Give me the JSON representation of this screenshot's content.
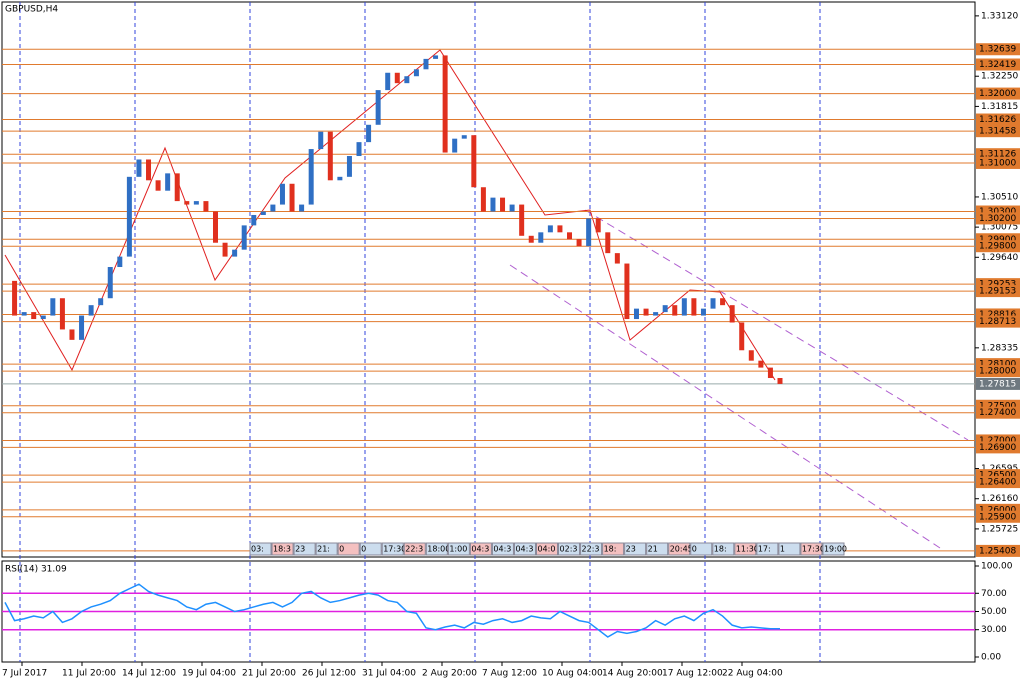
{
  "chart_data": [
    {
      "type": "candlestick",
      "title": "GBPUSD,H4",
      "up_color": "#2f6fc4",
      "down_color": "#e0301e",
      "values": [
        1.293,
        1.288,
        1.2885,
        1.2875,
        1.288,
        1.2905,
        1.286,
        1.2845,
        1.288,
        1.2895,
        1.2905,
        1.295,
        1.2965,
        1.308,
        1.3105,
        1.3075,
        1.306,
        1.3085,
        1.3045,
        1.304,
        1.3045,
        1.303,
        1.2985,
        1.2965,
        1.2975,
        1.301,
        1.3025,
        1.303,
        1.304,
        1.307,
        1.303,
        1.304,
        1.312,
        1.3145,
        1.3075,
        1.308,
        1.311,
        1.313,
        1.3155,
        1.3205,
        1.323,
        1.3215,
        1.3225,
        1.3235,
        1.325,
        1.3255,
        1.3115,
        1.3135,
        1.314,
        1.3065,
        1.303,
        1.305,
        1.303,
        1.304,
        1.2995,
        1.2985,
        1.3,
        1.301,
        1.3,
        1.299,
        1.298,
        1.302,
        1.3,
        1.297,
        1.2955,
        1.2875,
        1.289,
        1.288,
        1.2885,
        1.2895,
        1.288,
        1.2905,
        1.288,
        1.289,
        1.2905,
        1.2895,
        1.287,
        1.283,
        1.2815,
        1.2805,
        1.279,
        1.27815
      ],
      "current_price": 1.27815,
      "current_color": "#6e7880",
      "ylim": [
        1.2532,
        1.3332
      ],
      "yticks": [
        {
          "value": 1.3312,
          "label": "1.33120"
        },
        {
          "value": 1.3225,
          "label": "1.32250"
        },
        1.31815,
        {
          "value": 1.3051,
          "label": "1.30510"
        },
        1.30075,
        {
          "value": 1.2964,
          "label": "1.29640"
        },
        1.28335,
        1.26595,
        {
          "value": 1.2616,
          "label": "1.26160"
        },
        1.25725
      ],
      "levels": [
        1.32639,
        1.32419,
        {
          "value": 1.32,
          "label": "1.32000"
        },
        1.31626,
        1.31458,
        1.31126,
        {
          "value": 1.31,
          "label": "1.31000"
        },
        {
          "value": 1.303,
          "label": "1.30300"
        },
        {
          "value": 1.302,
          "label": "1.30200"
        },
        {
          "value": 1.299,
          "label": "1.29900"
        },
        {
          "value": 1.298,
          "label": "1.29800"
        },
        1.29253,
        1.29153,
        1.28816,
        1.28713,
        {
          "value": 1.281,
          "label": "1.28100"
        },
        {
          "value": 1.28,
          "label": "1.28000"
        },
        {
          "value": 1.275,
          "label": "1.27500"
        },
        {
          "value": 1.274,
          "label": "1.27400"
        },
        {
          "value": 1.27,
          "label": "1.27000"
        },
        {
          "value": 1.269,
          "label": "1.26900"
        },
        {
          "value": 1.265,
          "label": "1.26500"
        },
        {
          "value": 1.264,
          "label": "1.26400"
        },
        {
          "value": 1.26,
          "label": "1.26000"
        },
        {
          "value": 1.259,
          "label": "1.25900"
        },
        1.25408
      ],
      "level_color": "#e07a2e"
    },
    {
      "type": "line",
      "title": "RSI(14) 31.09",
      "color": "#1e90ff",
      "level_color": "#e020e0",
      "values": [
        60,
        40,
        42,
        45,
        43,
        50,
        38,
        42,
        50,
        55,
        58,
        62,
        70,
        75,
        80,
        72,
        68,
        65,
        62,
        55,
        52,
        58,
        60,
        55,
        50,
        52,
        55,
        58,
        60,
        55,
        60,
        70,
        72,
        65,
        60,
        62,
        65,
        68,
        70,
        68,
        62,
        60,
        50,
        48,
        32,
        30,
        33,
        35,
        32,
        38,
        36,
        40,
        42,
        38,
        40,
        45,
        43,
        42,
        50,
        45,
        40,
        38,
        30,
        22,
        28,
        26,
        28,
        32,
        40,
        35,
        42,
        45,
        40,
        48,
        52,
        45,
        35,
        32,
        33,
        32,
        31,
        31.09
      ],
      "ylim": [
        0,
        100
      ],
      "yticks": [
        {
          "value": 100,
          "label": "100.00"
        },
        {
          "value": 70,
          "label": "70.00"
        },
        {
          "value": 50,
          "label": "50.00"
        },
        {
          "value": 30,
          "label": "30.00"
        },
        {
          "value": 0,
          "label": "0.00"
        }
      ]
    }
  ],
  "time_axis": {
    "labels": [
      "7 Jul 2017",
      "11 Jul 20:00",
      "14 Jul 12:00",
      "19 Jul 04:00",
      "21 Jul 20:00",
      "26 Jul 12:00",
      "31 Jul 04:00",
      "2 Aug 20:00",
      "7 Aug 12:00",
      "10 Aug 04:00",
      "14 Aug 20:00",
      "17 Aug 12:00",
      "22 Aug 04:00"
    ]
  },
  "time_scroll": [
    "03:",
    "18:3",
    "23",
    "21:",
    "0",
    "0",
    "17:30",
    "22:3",
    "18:00",
    "1:00",
    "04:3",
    "04:3",
    "04:3",
    "04:0",
    "02:3",
    "22:3",
    "18:",
    "23",
    "21",
    "20:45",
    "0",
    "18:",
    "11:30",
    "17:",
    "1",
    "17:30",
    "19:00"
  ]
}
